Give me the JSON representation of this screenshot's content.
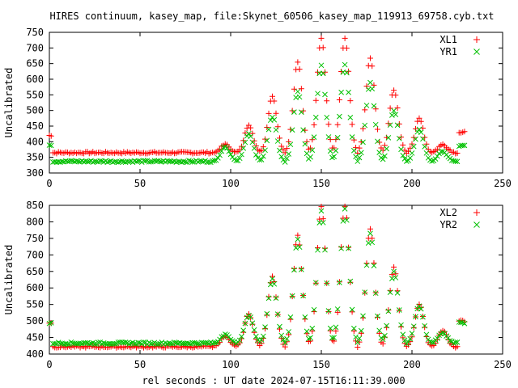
{
  "title": "HIRES continuum, kasey_map, file:Skynet_60506_kasey_map_119913_69758.cyb.txt",
  "xlabel": "rel seconds : UT date 2024-07-15T16:11:39.000",
  "colors": {
    "series1": "#ff0000",
    "series2": "#00c000"
  },
  "chart_data": [
    {
      "type": "scatter",
      "title": "HIRES continuum, kasey_map, file:Skynet_60506_kasey_map_119913_69758.cyb.txt",
      "xlabel": "",
      "ylabel": "Uncalibrated",
      "xlim": [
        0,
        250
      ],
      "ylim": [
        300,
        750
      ],
      "xticks": [
        0,
        50,
        100,
        150,
        200,
        250
      ],
      "yticks": [
        300,
        350,
        400,
        450,
        500,
        550,
        600,
        650,
        700,
        750
      ],
      "legend": "top-right",
      "series": [
        {
          "name": "XL1",
          "marker": "+",
          "color": "#ff0000",
          "baseline": 365,
          "start_level": 420,
          "end_level": 430,
          "peaks": [
            {
              "x": 97,
              "y": 392
            },
            {
              "x": 110,
              "y": 452
            },
            {
              "x": 123,
              "y": 545
            },
            {
              "x": 137,
              "y": 655
            },
            {
              "x": 150,
              "y": 730
            },
            {
              "x": 163,
              "y": 732
            },
            {
              "x": 177,
              "y": 668
            },
            {
              "x": 190,
              "y": 566
            },
            {
              "x": 204,
              "y": 475
            },
            {
              "x": 217,
              "y": 390
            }
          ]
        },
        {
          "name": "YR1",
          "marker": "x",
          "color": "#00c000",
          "baseline": 337,
          "start_level": 390,
          "end_level": 388,
          "peaks": [
            {
              "x": 97,
              "y": 385
            },
            {
              "x": 110,
              "y": 425
            },
            {
              "x": 123,
              "y": 480
            },
            {
              "x": 137,
              "y": 560
            },
            {
              "x": 150,
              "y": 643
            },
            {
              "x": 163,
              "y": 648
            },
            {
              "x": 177,
              "y": 590
            },
            {
              "x": 190,
              "y": 500
            },
            {
              "x": 204,
              "y": 440
            },
            {
              "x": 217,
              "y": 370
            }
          ]
        }
      ]
    },
    {
      "type": "scatter",
      "title": "",
      "xlabel": "rel seconds : UT date 2024-07-15T16:11:39.000",
      "ylabel": "Uncalibrated",
      "xlim": [
        0,
        250
      ],
      "ylim": [
        400,
        850
      ],
      "xticks": [
        0,
        50,
        100,
        150,
        200,
        250
      ],
      "yticks": [
        400,
        450,
        500,
        550,
        600,
        650,
        700,
        750,
        800,
        850
      ],
      "legend": "top-right",
      "series": [
        {
          "name": "XL2",
          "marker": "+",
          "color": "#ff0000",
          "baseline": 422,
          "start_level": 495,
          "end_level": 500,
          "peaks": [
            {
              "x": 97,
              "y": 455
            },
            {
              "x": 110,
              "y": 520
            },
            {
              "x": 123,
              "y": 635
            },
            {
              "x": 137,
              "y": 758
            },
            {
              "x": 150,
              "y": 845
            },
            {
              "x": 163,
              "y": 848
            },
            {
              "x": 177,
              "y": 778
            },
            {
              "x": 190,
              "y": 662
            },
            {
              "x": 204,
              "y": 550
            },
            {
              "x": 217,
              "y": 470
            }
          ]
        },
        {
          "name": "YR2",
          "marker": "x",
          "color": "#00c000",
          "baseline": 433,
          "start_level": 492,
          "end_level": 495,
          "peaks": [
            {
              "x": 97,
              "y": 458
            },
            {
              "x": 110,
              "y": 518
            },
            {
              "x": 123,
              "y": 628
            },
            {
              "x": 137,
              "y": 748
            },
            {
              "x": 150,
              "y": 832
            },
            {
              "x": 163,
              "y": 838
            },
            {
              "x": 177,
              "y": 765
            },
            {
              "x": 190,
              "y": 648
            },
            {
              "x": 204,
              "y": 545
            },
            {
              "x": 217,
              "y": 465
            }
          ]
        }
      ]
    }
  ]
}
